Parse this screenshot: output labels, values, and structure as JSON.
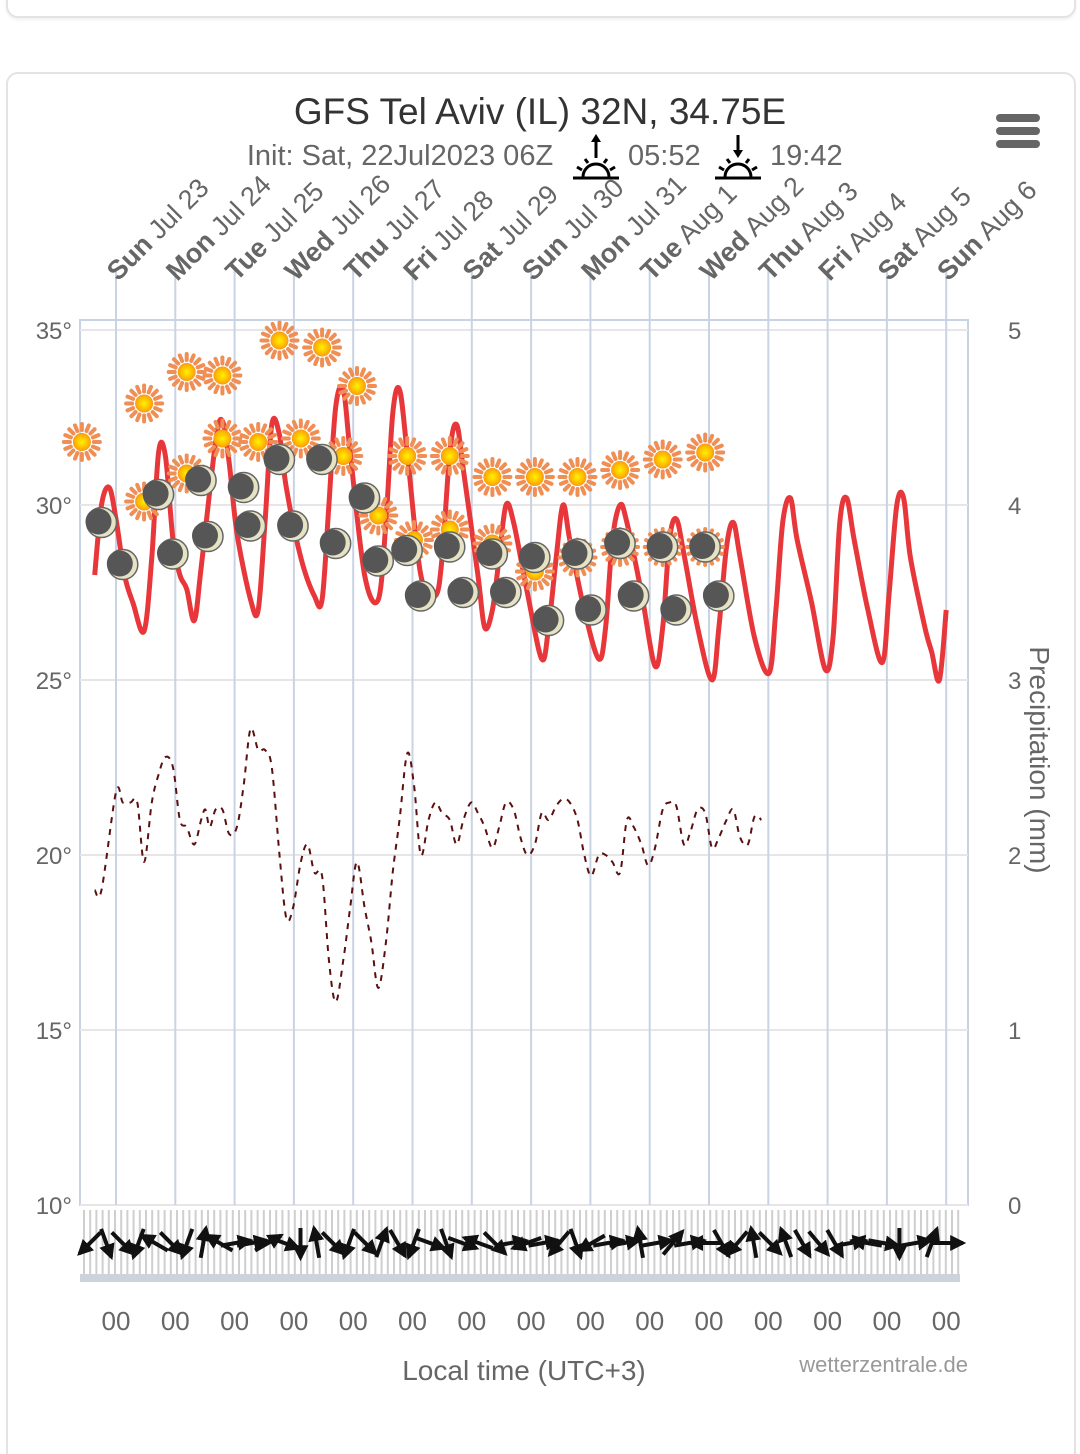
{
  "page": {
    "menu_icon": "hamburger-menu-icon"
  },
  "chart_data": {
    "type": "line",
    "title": "GFS Tel Aviv (IL) 32N, 34.75E",
    "subtitle": {
      "init_label": "Init: Sat, 22Jul2023 06Z",
      "sunrise_icon": "sunrise-icon",
      "sunrise": "05:52",
      "sunset_icon": "sunset-icon",
      "sunset": "19:42"
    },
    "xlabel": "Local time (UTC+3)",
    "credit": "wetterzentrale.de",
    "x_start_days": -0.25,
    "x_end_days": 14.35,
    "days": [
      {
        "weekday": "Sun",
        "date": "Jul 23"
      },
      {
        "weekday": "Mon",
        "date": "Jul 24"
      },
      {
        "weekday": "Tue",
        "date": "Jul 25"
      },
      {
        "weekday": "Wed",
        "date": "Jul 26"
      },
      {
        "weekday": "Thu",
        "date": "Jul 27"
      },
      {
        "weekday": "Fri",
        "date": "Jul 28"
      },
      {
        "weekday": "Sat",
        "date": "Jul 29"
      },
      {
        "weekday": "Sun",
        "date": "Jul 30"
      },
      {
        "weekday": "Mon",
        "date": "Jul 31"
      },
      {
        "weekday": "Tue",
        "date": "Aug 1"
      },
      {
        "weekday": "Wed",
        "date": "Aug 2"
      },
      {
        "weekday": "Thu",
        "date": "Aug 3"
      },
      {
        "weekday": "Fri",
        "date": "Aug 4"
      },
      {
        "weekday": "Sat",
        "date": "Aug 5"
      },
      {
        "weekday": "Sun",
        "date": "Aug 6"
      }
    ],
    "x_tick_labels": [
      "00",
      "00",
      "00",
      "00",
      "00",
      "00",
      "00",
      "00",
      "00",
      "00",
      "00",
      "00",
      "00",
      "00",
      "00"
    ],
    "y_left": {
      "ticks": [
        "35°",
        "30°",
        "25°",
        "20°",
        "15°",
        "10°"
      ],
      "values": [
        35,
        30,
        25,
        20,
        15,
        10
      ],
      "range": [
        10,
        35
      ]
    },
    "y_right": {
      "label": "Precipitation (mm)",
      "ticks": [
        "5",
        "4",
        "3",
        "2",
        "1",
        "0"
      ],
      "values": [
        5,
        4,
        3,
        2,
        1,
        0
      ],
      "range": [
        0,
        5
      ]
    },
    "grid": true,
    "colors": {
      "temperature": "#e8373a",
      "dewpoint": "#5a1010",
      "grid": "#e6e6e6",
      "day_lines": "#c8d4e3",
      "sun_core": "#ffc400",
      "sun_rays": "#f0915a",
      "moon_dark": "#555555",
      "moon_light": "#e8e4c8",
      "wind_arrows": "#111111"
    },
    "series": [
      {
        "name": "Temperature (°C)",
        "style": "solid",
        "points": [
          [
            -0.25,
            28.0
          ],
          [
            -0.17,
            30.0
          ],
          [
            -0.08,
            30.5
          ],
          [
            0.0,
            29.6
          ],
          [
            0.1,
            28.0
          ],
          [
            0.2,
            27.2
          ],
          [
            0.33,
            26.4
          ],
          [
            0.42,
            28.5
          ],
          [
            0.5,
            31.5
          ],
          [
            0.58,
            31.4
          ],
          [
            0.67,
            29.0
          ],
          [
            0.75,
            28.0
          ],
          [
            0.83,
            27.6
          ],
          [
            0.92,
            26.7
          ],
          [
            1.0,
            28.2
          ],
          [
            1.17,
            31.8
          ],
          [
            1.25,
            32.4
          ],
          [
            1.33,
            31.2
          ],
          [
            1.42,
            29.2
          ],
          [
            1.58,
            27.3
          ],
          [
            1.67,
            27.0
          ],
          [
            1.75,
            29.5
          ],
          [
            1.83,
            32.3
          ],
          [
            1.92,
            32.0
          ],
          [
            2.0,
            30.5
          ],
          [
            2.17,
            28.5
          ],
          [
            2.33,
            27.4
          ],
          [
            2.42,
            27.3
          ],
          [
            2.5,
            30.0
          ],
          [
            2.58,
            32.8
          ],
          [
            2.67,
            33.3
          ],
          [
            2.75,
            31.5
          ],
          [
            2.92,
            28.0
          ],
          [
            3.08,
            27.3
          ],
          [
            3.17,
            29.5
          ],
          [
            3.25,
            32.6
          ],
          [
            3.33,
            33.3
          ],
          [
            3.42,
            31.5
          ],
          [
            3.58,
            28.0
          ],
          [
            3.75,
            27.4
          ],
          [
            3.83,
            28.5
          ],
          [
            3.92,
            31.5
          ],
          [
            4.0,
            32.3
          ],
          [
            4.08,
            31.0
          ],
          [
            4.25,
            28.0
          ],
          [
            4.33,
            26.5
          ],
          [
            4.42,
            27.0
          ],
          [
            4.5,
            28.5
          ],
          [
            4.58,
            30.0
          ],
          [
            4.67,
            29.5
          ],
          [
            4.83,
            27.5
          ],
          [
            5.0,
            25.6
          ],
          [
            5.08,
            26.5
          ],
          [
            5.17,
            28.5
          ],
          [
            5.25,
            30.0
          ],
          [
            5.33,
            29.0
          ],
          [
            5.5,
            27.0
          ],
          [
            5.67,
            25.6
          ],
          [
            5.75,
            26.5
          ],
          [
            5.83,
            29.0
          ],
          [
            5.92,
            30.0
          ],
          [
            6.0,
            29.5
          ],
          [
            6.17,
            27.5
          ],
          [
            6.33,
            25.4
          ],
          [
            6.42,
            26.5
          ],
          [
            6.5,
            29.0
          ],
          [
            6.58,
            29.6
          ],
          [
            6.67,
            28.6
          ],
          [
            6.83,
            26.5
          ],
          [
            7.0,
            25.0
          ],
          [
            7.08,
            26.5
          ],
          [
            7.17,
            28.8
          ],
          [
            7.25,
            29.5
          ],
          [
            7.33,
            28.5
          ],
          [
            7.5,
            26.2
          ],
          [
            7.67,
            25.2
          ],
          [
            7.75,
            27.0
          ],
          [
            7.83,
            29.5
          ],
          [
            7.92,
            30.2
          ],
          [
            8.0,
            29.0
          ],
          [
            8.17,
            27.2
          ],
          [
            8.33,
            25.3
          ],
          [
            8.42,
            26.2
          ],
          [
            8.5,
            29.5
          ],
          [
            8.58,
            30.2
          ],
          [
            8.67,
            29.0
          ],
          [
            8.83,
            27.0
          ],
          [
            9.0,
            25.5
          ],
          [
            9.08,
            27.5
          ],
          [
            9.17,
            30.0
          ],
          [
            9.25,
            30.2
          ],
          [
            9.33,
            28.5
          ],
          [
            9.5,
            26.5
          ],
          [
            9.58,
            25.8
          ],
          [
            9.67,
            25.0
          ],
          [
            9.75,
            27.0
          ]
        ]
      },
      {
        "name": "Dew point (°C)",
        "style": "dashed",
        "points": [
          [
            -0.25,
            19.0
          ],
          [
            -0.17,
            19.0
          ],
          [
            0.0,
            21.8
          ],
          [
            0.08,
            21.5
          ],
          [
            0.17,
            21.5
          ],
          [
            0.25,
            21.5
          ],
          [
            0.33,
            19.8
          ],
          [
            0.42,
            21.5
          ],
          [
            0.5,
            22.3
          ],
          [
            0.58,
            22.8
          ],
          [
            0.67,
            22.5
          ],
          [
            0.75,
            21.0
          ],
          [
            0.83,
            20.8
          ],
          [
            0.92,
            20.3
          ],
          [
            1.0,
            21.0
          ],
          [
            1.05,
            21.3
          ],
          [
            1.1,
            20.8
          ],
          [
            1.17,
            21.3
          ],
          [
            1.25,
            21.3
          ],
          [
            1.33,
            20.6
          ],
          [
            1.42,
            20.8
          ],
          [
            1.5,
            22.0
          ],
          [
            1.58,
            23.6
          ],
          [
            1.67,
            23.0
          ],
          [
            1.75,
            23.0
          ],
          [
            1.83,
            22.5
          ],
          [
            1.92,
            20.0
          ],
          [
            2.0,
            18.2
          ],
          [
            2.08,
            18.5
          ],
          [
            2.17,
            19.8
          ],
          [
            2.25,
            20.3
          ],
          [
            2.33,
            19.5
          ],
          [
            2.42,
            19.4
          ],
          [
            2.5,
            17.0
          ],
          [
            2.58,
            15.8
          ],
          [
            2.67,
            17.0
          ],
          [
            2.75,
            18.5
          ],
          [
            2.83,
            19.8
          ],
          [
            2.92,
            18.5
          ],
          [
            3.0,
            17.5
          ],
          [
            3.08,
            16.2
          ],
          [
            3.17,
            17.5
          ],
          [
            3.25,
            19.5
          ],
          [
            3.33,
            21.0
          ],
          [
            3.42,
            22.9
          ],
          [
            3.5,
            22.0
          ],
          [
            3.58,
            20.0
          ],
          [
            3.67,
            21.0
          ],
          [
            3.75,
            21.5
          ],
          [
            3.83,
            21.2
          ],
          [
            3.92,
            21.0
          ],
          [
            4.0,
            20.3
          ],
          [
            4.08,
            21.0
          ],
          [
            4.17,
            21.5
          ],
          [
            4.25,
            21.2
          ],
          [
            4.33,
            20.8
          ],
          [
            4.42,
            20.2
          ],
          [
            4.5,
            20.8
          ],
          [
            4.58,
            21.5
          ],
          [
            4.67,
            21.3
          ],
          [
            4.75,
            20.5
          ],
          [
            4.83,
            20.0
          ],
          [
            4.92,
            20.3
          ],
          [
            5.0,
            21.2
          ],
          [
            5.08,
            21.0
          ],
          [
            5.17,
            21.4
          ],
          [
            5.25,
            21.6
          ],
          [
            5.33,
            21.5
          ],
          [
            5.42,
            21.0
          ],
          [
            5.5,
            20.0
          ],
          [
            5.58,
            19.4
          ],
          [
            5.67,
            20.0
          ],
          [
            5.75,
            20.0
          ],
          [
            5.83,
            19.8
          ],
          [
            5.92,
            19.5
          ],
          [
            6.0,
            21.0
          ],
          [
            6.08,
            20.8
          ],
          [
            6.17,
            20.3
          ],
          [
            6.25,
            19.7
          ],
          [
            6.33,
            20.2
          ],
          [
            6.42,
            21.3
          ],
          [
            6.5,
            21.5
          ],
          [
            6.58,
            21.4
          ],
          [
            6.67,
            20.3
          ],
          [
            6.75,
            20.7
          ],
          [
            6.83,
            21.3
          ],
          [
            6.92,
            21.2
          ],
          [
            7.0,
            20.2
          ],
          [
            7.08,
            20.5
          ],
          [
            7.17,
            21.0
          ],
          [
            7.25,
            21.3
          ],
          [
            7.33,
            20.5
          ],
          [
            7.42,
            20.3
          ],
          [
            7.5,
            21.1
          ],
          [
            7.58,
            21.0
          ]
        ]
      }
    ],
    "day_icons": {
      "symbol": "sun-icon",
      "points": [
        [
          -0.4,
          31.8
        ],
        [
          0.33,
          32.9
        ],
        [
          0.83,
          33.8
        ],
        [
          1.25,
          33.7
        ],
        [
          1.92,
          34.7
        ],
        [
          2.42,
          34.5
        ],
        [
          2.83,
          33.4
        ],
        [
          3.42,
          31.4
        ],
        [
          3.92,
          31.4
        ],
        [
          4.42,
          30.8
        ],
        [
          4.92,
          30.8
        ],
        [
          5.42,
          30.8
        ],
        [
          5.92,
          31.0
        ],
        [
          6.42,
          31.3
        ],
        [
          6.92,
          31.5
        ]
      ]
    },
    "noon_icons": {
      "symbol": "sun-icon",
      "points": [
        [
          0.33,
          30.1
        ],
        [
          0.83,
          30.9
        ],
        [
          1.25,
          31.9
        ],
        [
          1.67,
          31.8
        ],
        [
          2.17,
          31.9
        ],
        [
          2.67,
          31.4
        ],
        [
          3.08,
          29.7
        ],
        [
          3.5,
          29.0
        ],
        [
          3.92,
          29.3
        ],
        [
          4.42,
          28.9
        ],
        [
          4.92,
          28.1
        ],
        [
          5.42,
          28.5
        ],
        [
          5.92,
          28.8
        ],
        [
          6.42,
          28.8
        ],
        [
          6.92,
          28.8
        ]
      ]
    },
    "night_icons": {
      "symbol": "moon-icon",
      "points": [
        [
          -0.17,
          29.5
        ],
        [
          0.08,
          28.3
        ],
        [
          0.5,
          30.3
        ],
        [
          0.67,
          28.6
        ],
        [
          1.0,
          30.7
        ],
        [
          1.08,
          29.1
        ],
        [
          1.5,
          30.5
        ],
        [
          1.58,
          29.4
        ],
        [
          1.92,
          31.3
        ],
        [
          2.08,
          29.4
        ],
        [
          2.42,
          31.3
        ],
        [
          2.58,
          28.9
        ],
        [
          2.92,
          30.2
        ],
        [
          3.08,
          28.4
        ],
        [
          3.42,
          28.7
        ],
        [
          3.58,
          27.4
        ],
        [
          3.92,
          28.8
        ],
        [
          4.08,
          27.5
        ],
        [
          4.42,
          28.6
        ],
        [
          4.58,
          27.5
        ],
        [
          4.92,
          28.5
        ],
        [
          5.08,
          26.7
        ],
        [
          5.42,
          28.6
        ],
        [
          5.58,
          27.0
        ],
        [
          5.92,
          28.9
        ],
        [
          6.08,
          27.4
        ],
        [
          6.42,
          28.8
        ],
        [
          6.58,
          27.0
        ],
        [
          6.92,
          28.8
        ],
        [
          7.08,
          27.4
        ]
      ]
    },
    "precipitation_mm": [],
    "wind": {
      "symbol": "wind-arrow-icon",
      "directions_deg": [
        225,
        160,
        135,
        200,
        300,
        135,
        200,
        10,
        300,
        80,
        80,
        60,
        110,
        180,
        350,
        135,
        200,
        135,
        20,
        150,
        200,
        110,
        160,
        110,
        290,
        135,
        80,
        250,
        80,
        220,
        160,
        240,
        80,
        80,
        350,
        80,
        40,
        80,
        270,
        150,
        220,
        350,
        135,
        340,
        150,
        140,
        150,
        80,
        280,
        100,
        180,
        80,
        20,
        90
      ]
    }
  }
}
